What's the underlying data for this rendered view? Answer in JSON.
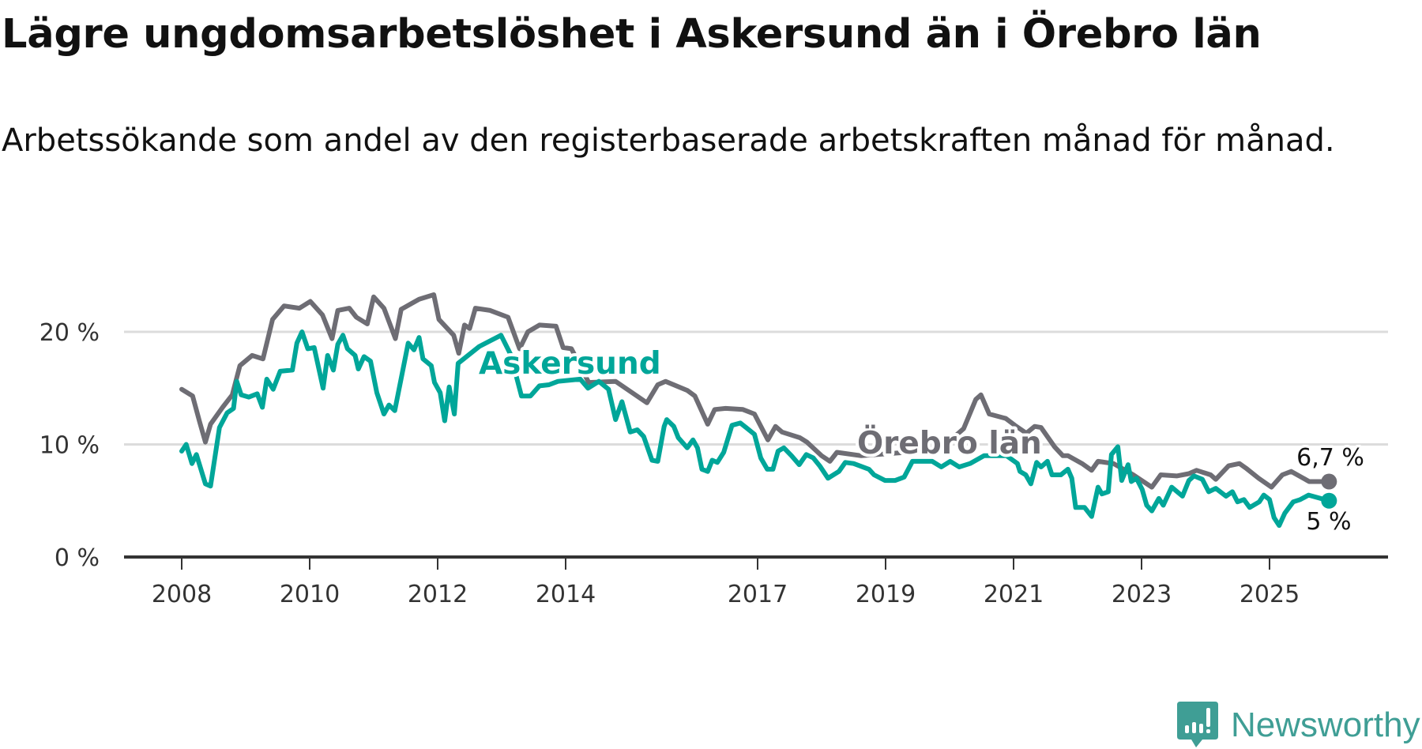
{
  "chart_data": {
    "type": "line",
    "title": "Lägre ungdomsarbetslöshet i Askersund än i Örebro län",
    "subtitle": "Arbetssökande som andel av den registerbaserade arbetskraften månad för månad.",
    "xlabel": "",
    "ylabel": "",
    "xlim": [
      2008,
      2025.93
    ],
    "ylim": [
      0,
      24
    ],
    "grid": true,
    "y_ticks": [
      {
        "v": 0,
        "label": "0 %"
      },
      {
        "v": 10,
        "label": "10 %"
      },
      {
        "v": 20,
        "label": "20 %"
      }
    ],
    "x_ticks": [
      {
        "v": 2008,
        "label": "2008"
      },
      {
        "v": 2010,
        "label": "2010"
      },
      {
        "v": 2012,
        "label": "2012"
      },
      {
        "v": 2014,
        "label": "2014"
      },
      {
        "v": 2017,
        "label": "2017"
      },
      {
        "v": 2019,
        "label": "2019"
      },
      {
        "v": 2021,
        "label": "2021"
      },
      {
        "v": 2023,
        "label": "2023"
      },
      {
        "v": 2025,
        "label": "2025"
      }
    ],
    "series": [
      {
        "name": "Örebro län",
        "color": "#6e6d74",
        "end_label": "6,7 %",
        "points": [
          [
            2008.0,
            14.9
          ],
          [
            2008.17,
            14.3
          ],
          [
            2008.28,
            12.0
          ],
          [
            2008.37,
            10.2
          ],
          [
            2008.45,
            11.8
          ],
          [
            2008.64,
            13.3
          ],
          [
            2008.79,
            14.4
          ],
          [
            2008.91,
            17.0
          ],
          [
            2009.1,
            17.9
          ],
          [
            2009.27,
            17.6
          ],
          [
            2009.42,
            21.1
          ],
          [
            2009.6,
            22.3
          ],
          [
            2009.84,
            22.1
          ],
          [
            2010.01,
            22.7
          ],
          [
            2010.2,
            21.5
          ],
          [
            2010.35,
            19.4
          ],
          [
            2010.44,
            21.9
          ],
          [
            2010.62,
            22.1
          ],
          [
            2010.73,
            21.3
          ],
          [
            2010.9,
            20.7
          ],
          [
            2011.0,
            23.1
          ],
          [
            2011.16,
            22.1
          ],
          [
            2011.34,
            19.4
          ],
          [
            2011.43,
            22.0
          ],
          [
            2011.71,
            22.9
          ],
          [
            2011.94,
            23.3
          ],
          [
            2012.02,
            21.1
          ],
          [
            2012.25,
            19.7
          ],
          [
            2012.33,
            18.1
          ],
          [
            2012.42,
            20.6
          ],
          [
            2012.5,
            20.3
          ],
          [
            2012.59,
            22.1
          ],
          [
            2012.82,
            21.9
          ],
          [
            2013.1,
            21.3
          ],
          [
            2013.28,
            18.5
          ],
          [
            2013.41,
            20.0
          ],
          [
            2013.59,
            20.6
          ],
          [
            2013.85,
            20.5
          ],
          [
            2013.96,
            18.6
          ],
          [
            2014.09,
            18.5
          ],
          [
            2014.36,
            15.5
          ],
          [
            2014.78,
            15.6
          ],
          [
            2015.27,
            13.7
          ],
          [
            2015.44,
            15.3
          ],
          [
            2015.56,
            15.6
          ],
          [
            2015.9,
            14.8
          ],
          [
            2016.02,
            14.3
          ],
          [
            2016.22,
            11.8
          ],
          [
            2016.33,
            13.1
          ],
          [
            2016.5,
            13.2
          ],
          [
            2016.77,
            13.1
          ],
          [
            2016.95,
            12.7
          ],
          [
            2017.16,
            10.4
          ],
          [
            2017.28,
            11.6
          ],
          [
            2017.38,
            11.1
          ],
          [
            2017.66,
            10.6
          ],
          [
            2017.77,
            10.2
          ],
          [
            2018.0,
            9.0
          ],
          [
            2018.13,
            8.5
          ],
          [
            2018.24,
            9.3
          ],
          [
            2018.62,
            9.0
          ],
          [
            2019.33,
            9.3
          ],
          [
            2019.9,
            9.8
          ],
          [
            2020.22,
            11.4
          ],
          [
            2020.41,
            14.0
          ],
          [
            2020.49,
            14.4
          ],
          [
            2020.62,
            12.7
          ],
          [
            2020.88,
            12.3
          ],
          [
            2021.02,
            11.7
          ],
          [
            2021.2,
            11.0
          ],
          [
            2021.33,
            11.6
          ],
          [
            2021.43,
            11.5
          ],
          [
            2021.64,
            9.8
          ],
          [
            2021.77,
            9.0
          ],
          [
            2021.85,
            9.0
          ],
          [
            2022.07,
            8.3
          ],
          [
            2022.22,
            7.7
          ],
          [
            2022.32,
            8.5
          ],
          [
            2022.56,
            8.3
          ],
          [
            2022.87,
            7.3
          ],
          [
            2023.16,
            6.2
          ],
          [
            2023.3,
            7.3
          ],
          [
            2023.55,
            7.2
          ],
          [
            2023.74,
            7.4
          ],
          [
            2023.86,
            7.7
          ],
          [
            2024.08,
            7.3
          ],
          [
            2024.16,
            6.9
          ],
          [
            2024.36,
            8.1
          ],
          [
            2024.53,
            8.3
          ],
          [
            2024.63,
            7.9
          ],
          [
            2024.83,
            7.0
          ],
          [
            2025.03,
            6.2
          ],
          [
            2025.2,
            7.3
          ],
          [
            2025.34,
            7.6
          ],
          [
            2025.62,
            6.7
          ],
          [
            2025.93,
            6.7
          ]
        ]
      },
      {
        "name": "Askersund",
        "color": "#00a699",
        "end_label": "5 %",
        "points": [
          [
            2008.0,
            9.4
          ],
          [
            2008.07,
            10.0
          ],
          [
            2008.16,
            8.3
          ],
          [
            2008.23,
            9.1
          ],
          [
            2008.37,
            6.5
          ],
          [
            2008.45,
            6.3
          ],
          [
            2008.59,
            11.5
          ],
          [
            2008.71,
            12.8
          ],
          [
            2008.81,
            13.2
          ],
          [
            2008.86,
            15.6
          ],
          [
            2008.93,
            14.4
          ],
          [
            2009.05,
            14.2
          ],
          [
            2009.18,
            14.5
          ],
          [
            2009.26,
            13.3
          ],
          [
            2009.33,
            15.8
          ],
          [
            2009.43,
            14.9
          ],
          [
            2009.54,
            16.5
          ],
          [
            2009.73,
            16.6
          ],
          [
            2009.8,
            19.0
          ],
          [
            2009.88,
            20.0
          ],
          [
            2009.97,
            18.5
          ],
          [
            2010.07,
            18.6
          ],
          [
            2010.21,
            15.0
          ],
          [
            2010.28,
            17.9
          ],
          [
            2010.37,
            16.6
          ],
          [
            2010.44,
            18.9
          ],
          [
            2010.52,
            19.7
          ],
          [
            2010.59,
            18.5
          ],
          [
            2010.71,
            17.9
          ],
          [
            2010.76,
            16.7
          ],
          [
            2010.85,
            17.8
          ],
          [
            2010.95,
            17.4
          ],
          [
            2011.05,
            14.6
          ],
          [
            2011.16,
            12.7
          ],
          [
            2011.24,
            13.5
          ],
          [
            2011.33,
            13.0
          ],
          [
            2011.54,
            19.0
          ],
          [
            2011.63,
            18.4
          ],
          [
            2011.71,
            19.5
          ],
          [
            2011.77,
            17.6
          ],
          [
            2011.9,
            17.0
          ],
          [
            2011.95,
            15.5
          ],
          [
            2012.04,
            14.6
          ],
          [
            2012.11,
            12.1
          ],
          [
            2012.18,
            15.1
          ],
          [
            2012.26,
            12.7
          ],
          [
            2012.32,
            17.2
          ],
          [
            2012.65,
            18.7
          ],
          [
            2012.99,
            19.7
          ],
          [
            2013.14,
            18.0
          ],
          [
            2013.31,
            14.3
          ],
          [
            2013.45,
            14.3
          ],
          [
            2013.59,
            15.2
          ],
          [
            2013.74,
            15.3
          ],
          [
            2013.88,
            15.6
          ],
          [
            2014.23,
            15.8
          ],
          [
            2014.35,
            15.0
          ],
          [
            2014.52,
            15.6
          ],
          [
            2014.67,
            14.9
          ],
          [
            2014.78,
            12.2
          ],
          [
            2014.88,
            13.8
          ],
          [
            2015.01,
            11.1
          ],
          [
            2015.12,
            11.3
          ],
          [
            2015.22,
            10.7
          ],
          [
            2015.35,
            8.6
          ],
          [
            2015.44,
            8.5
          ],
          [
            2015.54,
            11.6
          ],
          [
            2015.58,
            12.2
          ],
          [
            2015.69,
            11.6
          ],
          [
            2015.76,
            10.6
          ],
          [
            2015.9,
            9.7
          ],
          [
            2015.99,
            10.4
          ],
          [
            2016.06,
            9.7
          ],
          [
            2016.13,
            7.8
          ],
          [
            2016.22,
            7.6
          ],
          [
            2016.29,
            8.6
          ],
          [
            2016.37,
            8.4
          ],
          [
            2016.47,
            9.3
          ],
          [
            2016.6,
            11.7
          ],
          [
            2016.73,
            11.9
          ],
          [
            2016.82,
            11.5
          ],
          [
            2016.95,
            10.9
          ],
          [
            2017.05,
            8.8
          ],
          [
            2017.15,
            7.8
          ],
          [
            2017.24,
            7.8
          ],
          [
            2017.32,
            9.4
          ],
          [
            2017.41,
            9.7
          ],
          [
            2017.53,
            9.0
          ],
          [
            2017.65,
            8.2
          ],
          [
            2017.76,
            9.1
          ],
          [
            2017.87,
            8.8
          ],
          [
            2017.97,
            8.1
          ],
          [
            2018.1,
            7.0
          ],
          [
            2018.27,
            7.6
          ],
          [
            2018.37,
            8.4
          ],
          [
            2018.5,
            8.3
          ],
          [
            2018.74,
            7.8
          ],
          [
            2018.82,
            7.3
          ],
          [
            2018.99,
            6.8
          ],
          [
            2019.15,
            6.8
          ],
          [
            2019.29,
            7.1
          ],
          [
            2019.42,
            8.5
          ],
          [
            2019.73,
            8.5
          ],
          [
            2019.87,
            8.0
          ],
          [
            2020.01,
            8.5
          ],
          [
            2020.15,
            8.0
          ],
          [
            2020.32,
            8.3
          ],
          [
            2020.54,
            9.0
          ],
          [
            2020.89,
            9.0
          ],
          [
            2021.06,
            8.3
          ],
          [
            2021.1,
            7.6
          ],
          [
            2021.19,
            7.3
          ],
          [
            2021.27,
            6.5
          ],
          [
            2021.36,
            8.4
          ],
          [
            2021.43,
            8.0
          ],
          [
            2021.53,
            8.5
          ],
          [
            2021.6,
            7.3
          ],
          [
            2021.74,
            7.3
          ],
          [
            2021.85,
            7.8
          ],
          [
            2021.91,
            7.0
          ],
          [
            2021.97,
            4.4
          ],
          [
            2022.11,
            4.4
          ],
          [
            2022.22,
            3.6
          ],
          [
            2022.32,
            6.2
          ],
          [
            2022.38,
            5.6
          ],
          [
            2022.48,
            5.8
          ],
          [
            2022.53,
            9.1
          ],
          [
            2022.63,
            9.8
          ],
          [
            2022.69,
            6.8
          ],
          [
            2022.79,
            8.2
          ],
          [
            2022.84,
            6.7
          ],
          [
            2022.92,
            7.0
          ],
          [
            2023.01,
            6.0
          ],
          [
            2023.08,
            4.6
          ],
          [
            2023.16,
            4.1
          ],
          [
            2023.27,
            5.2
          ],
          [
            2023.34,
            4.6
          ],
          [
            2023.47,
            6.2
          ],
          [
            2023.64,
            5.4
          ],
          [
            2023.74,
            6.8
          ],
          [
            2023.82,
            7.2
          ],
          [
            2023.95,
            6.9
          ],
          [
            2024.05,
            5.8
          ],
          [
            2024.16,
            6.1
          ],
          [
            2024.32,
            5.4
          ],
          [
            2024.42,
            5.8
          ],
          [
            2024.5,
            4.9
          ],
          [
            2024.6,
            5.1
          ],
          [
            2024.69,
            4.4
          ],
          [
            2024.84,
            4.9
          ],
          [
            2024.91,
            5.5
          ],
          [
            2025.0,
            5.1
          ],
          [
            2025.07,
            3.5
          ],
          [
            2025.15,
            2.8
          ],
          [
            2025.24,
            3.9
          ],
          [
            2025.37,
            4.9
          ],
          [
            2025.48,
            5.1
          ],
          [
            2025.61,
            5.5
          ],
          [
            2025.93,
            5.0
          ]
        ]
      }
    ]
  },
  "brand": {
    "name": "Newsworthy",
    "color": "#3f9e95"
  }
}
